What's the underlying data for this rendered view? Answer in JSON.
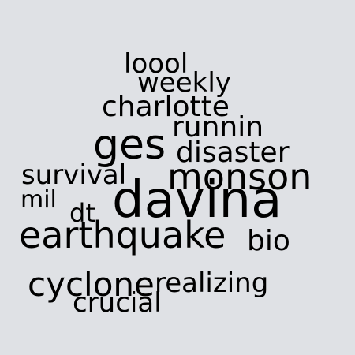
{
  "word_cloud": {
    "words": [
      {
        "text": "loool"
      },
      {
        "text": "weekly"
      },
      {
        "text": "charlotte"
      },
      {
        "text": "runnin"
      },
      {
        "text": "ges"
      },
      {
        "text": "disaster"
      },
      {
        "text": "survival"
      },
      {
        "text": "monson"
      },
      {
        "text": "davina"
      },
      {
        "text": "mil"
      },
      {
        "text": "dt"
      },
      {
        "text": "earthquake"
      },
      {
        "text": "bio"
      },
      {
        "text": "cyclone"
      },
      {
        "text": "realizing"
      },
      {
        "text": "crucial"
      }
    ],
    "colors": {
      "background": "#dfe1e5",
      "text": "#000000"
    }
  }
}
